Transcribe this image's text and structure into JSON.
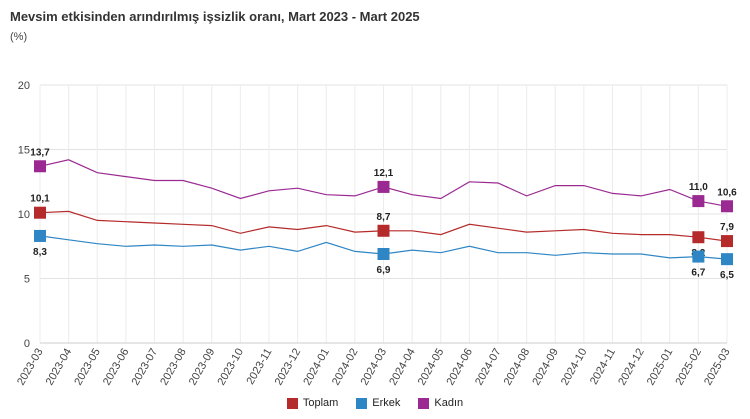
{
  "title": "Mevsim etkisinden arındırılmış işsizlik oranı, Mart 2023 - Mart 2025",
  "unit_label": "(%)",
  "chart_data": {
    "type": "line",
    "title": "Mevsim etkisinden arındırılmış işsizlik oranı, Mart 2023 - Mart 2025",
    "ylabel": "(%)",
    "xlabel": "",
    "ylim": [
      0,
      20
    ],
    "yticks": [
      0,
      5,
      10,
      15,
      20
    ],
    "grid": true,
    "legend_position": "bottom",
    "categories": [
      "2023-03",
      "2023-04",
      "2023-05",
      "2023-06",
      "2023-07",
      "2023-08",
      "2023-09",
      "2023-10",
      "2023-11",
      "2023-12",
      "2024-01",
      "2024-02",
      "2024-03",
      "2024-04",
      "2024-05",
      "2024-06",
      "2024-07",
      "2024-08",
      "2024-09",
      "2024-10",
      "2024-11",
      "2024-12",
      "2025-01",
      "2025-02",
      "2025-03"
    ],
    "series": [
      {
        "name": "Toplam",
        "color": "#b52a2a",
        "values": [
          10.1,
          10.2,
          9.5,
          9.4,
          9.3,
          9.2,
          9.1,
          8.5,
          9.0,
          8.8,
          9.1,
          8.6,
          8.7,
          8.7,
          8.4,
          9.2,
          8.9,
          8.6,
          8.7,
          8.8,
          8.5,
          8.4,
          8.4,
          8.2,
          7.9
        ],
        "labels": {
          "0": "10,1",
          "12": "8,7",
          "23": "8,2",
          "24": "7,9"
        },
        "label_pos": {
          "0": "above",
          "12": "above",
          "23": "below",
          "24": "above"
        }
      },
      {
        "name": "Erkek",
        "color": "#2f86c4",
        "values": [
          8.3,
          8.0,
          7.7,
          7.5,
          7.6,
          7.5,
          7.6,
          7.2,
          7.5,
          7.1,
          7.8,
          7.1,
          6.9,
          7.2,
          7.0,
          7.5,
          7.0,
          7.0,
          6.8,
          7.0,
          6.9,
          6.9,
          6.6,
          6.7,
          6.5
        ],
        "labels": {
          "0": "8,3",
          "12": "6,9",
          "23": "6,7",
          "24": "6,5"
        },
        "label_pos": {
          "0": "below",
          "12": "below",
          "23": "below",
          "24": "below"
        }
      },
      {
        "name": "Kadın",
        "color": "#9a2a92",
        "values": [
          13.7,
          14.2,
          13.2,
          12.9,
          12.6,
          12.6,
          12.0,
          11.2,
          11.8,
          12.0,
          11.5,
          11.4,
          12.1,
          11.5,
          11.2,
          12.5,
          12.4,
          11.4,
          12.2,
          12.2,
          11.6,
          11.4,
          11.9,
          11.0,
          10.6
        ],
        "labels": {
          "0": "13,7",
          "12": "12,1",
          "23": "11,0",
          "24": "10,6"
        },
        "label_pos": {
          "0": "above",
          "12": "above",
          "23": "above",
          "24": "above"
        }
      }
    ]
  }
}
